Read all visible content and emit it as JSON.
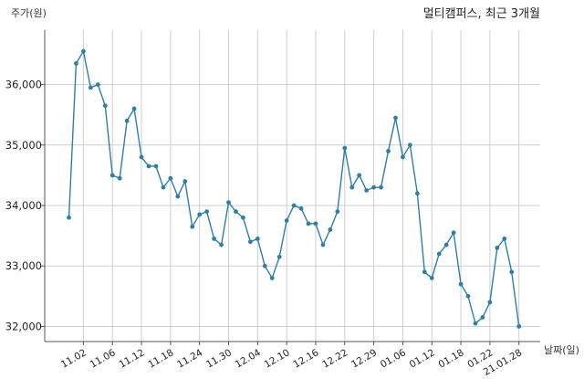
{
  "chart_data": {
    "type": "line",
    "title": "멀티캠퍼스, 최근 3개월",
    "xlabel": "날짜(일)",
    "ylabel": "주가(원)",
    "ylim": [
      31750,
      36900
    ],
    "grid": true,
    "yticks": [
      32000,
      33000,
      34000,
      35000,
      36000
    ],
    "ytick_labels": [
      "32,000",
      "33,000",
      "34,000",
      "35,000",
      "36,000"
    ],
    "xtick_labels": [
      "11.02",
      "11.06",
      "11.12",
      "11.18",
      "11.24",
      "11.30",
      "12.04",
      "12.10",
      "12.16",
      "12.22",
      "12.29",
      "01.06",
      "01.12",
      "01.18",
      "01.22",
      "21.01.28"
    ],
    "xtick_index": [
      2,
      6,
      10,
      14,
      18,
      22,
      26,
      30,
      34,
      38,
      42,
      46,
      50,
      54,
      58,
      62
    ],
    "series": [
      {
        "values": [
          33800,
          36350,
          36550,
          35950,
          36000,
          35650,
          34500,
          34450,
          35400,
          35600,
          34800,
          34650,
          34650,
          34300,
          34450,
          34150,
          34400,
          33650,
          33850,
          33900,
          33450,
          33350,
          34050,
          33900,
          33800,
          33400,
          33450,
          33000,
          32800,
          33150,
          33750,
          34000,
          33950,
          33700,
          33700,
          33350,
          33600,
          33900,
          34950,
          34300,
          34500,
          34250,
          34300,
          34300,
          34900,
          35450,
          34800,
          35000,
          34200,
          32900,
          32800,
          33200,
          33350,
          33550,
          32700,
          32500,
          32050,
          32150,
          32400,
          33300,
          33450,
          32900,
          32000
        ]
      }
    ]
  }
}
